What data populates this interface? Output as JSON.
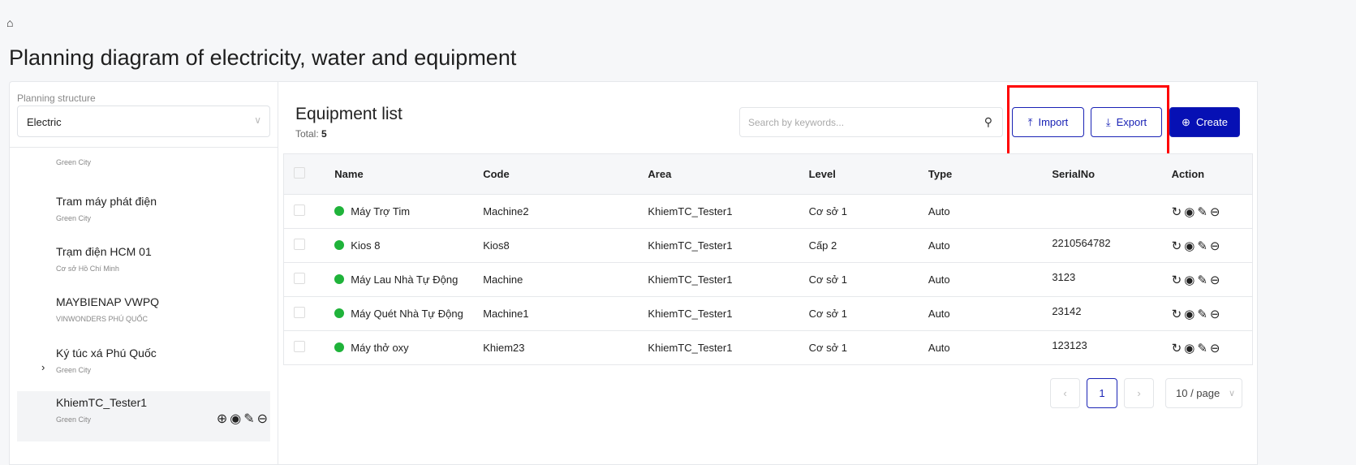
{
  "page": {
    "title": "Planning diagram of electricity, water and equipment"
  },
  "sidebar": {
    "label": "Planning structure",
    "selected": "Electric",
    "nodes": [
      {
        "name": "",
        "sub": "Green City"
      },
      {
        "name": "Tram máy phát điện",
        "sub": "Green City"
      },
      {
        "name": "Trạm điện HCM 01",
        "sub": "Cơ sở Hồ Chí Minh"
      },
      {
        "name": "MAYBIENAP VWPQ",
        "sub": "VINWONDERS PHÚ QUỐC"
      },
      {
        "name": "Ký túc xá Phú Quốc",
        "sub": "Green City"
      },
      {
        "name": "KhiemTC_Tester1",
        "sub": "Green City"
      }
    ]
  },
  "main": {
    "heading": "Equipment list",
    "total_label": "Total:",
    "total": "5",
    "search_placeholder": "Search by keywords...",
    "import": "Import",
    "export": "Export",
    "create": "Create",
    "columns": [
      "Name",
      "Code",
      "Area",
      "Level",
      "Type",
      "SerialNo",
      "Action"
    ],
    "rows": [
      {
        "name": "Máy Trợ Tim",
        "code": "Machine2",
        "area": "KhiemTC_Tester1",
        "level": "Cơ sở 1",
        "type": "Auto",
        "serial": ""
      },
      {
        "name": "Kios 8",
        "code": "Kios8",
        "area": "KhiemTC_Tester1",
        "level": "Cấp 2",
        "type": "Auto",
        "serial": "2210564782"
      },
      {
        "name": "Máy Lau Nhà Tự Động",
        "code": "Machine",
        "area": "KhiemTC_Tester1",
        "level": "Cơ sở 1",
        "type": "Auto",
        "serial": "3123"
      },
      {
        "name": "Máy Quét Nhà Tự Động",
        "code": "Machine1",
        "area": "KhiemTC_Tester1",
        "level": "Cơ sở 1",
        "type": "Auto",
        "serial": "23142"
      },
      {
        "name": "Máy thở oxy",
        "code": "Khiem23",
        "area": "KhiemTC_Tester1",
        "level": "Cơ sở 1",
        "type": "Auto",
        "serial": "123123"
      }
    ],
    "pagination": {
      "page": "1",
      "page_size": "10 / page"
    }
  },
  "colors": {
    "accent": "#0610b4",
    "status": "#1fb33a",
    "highlight": "#ff0000"
  }
}
